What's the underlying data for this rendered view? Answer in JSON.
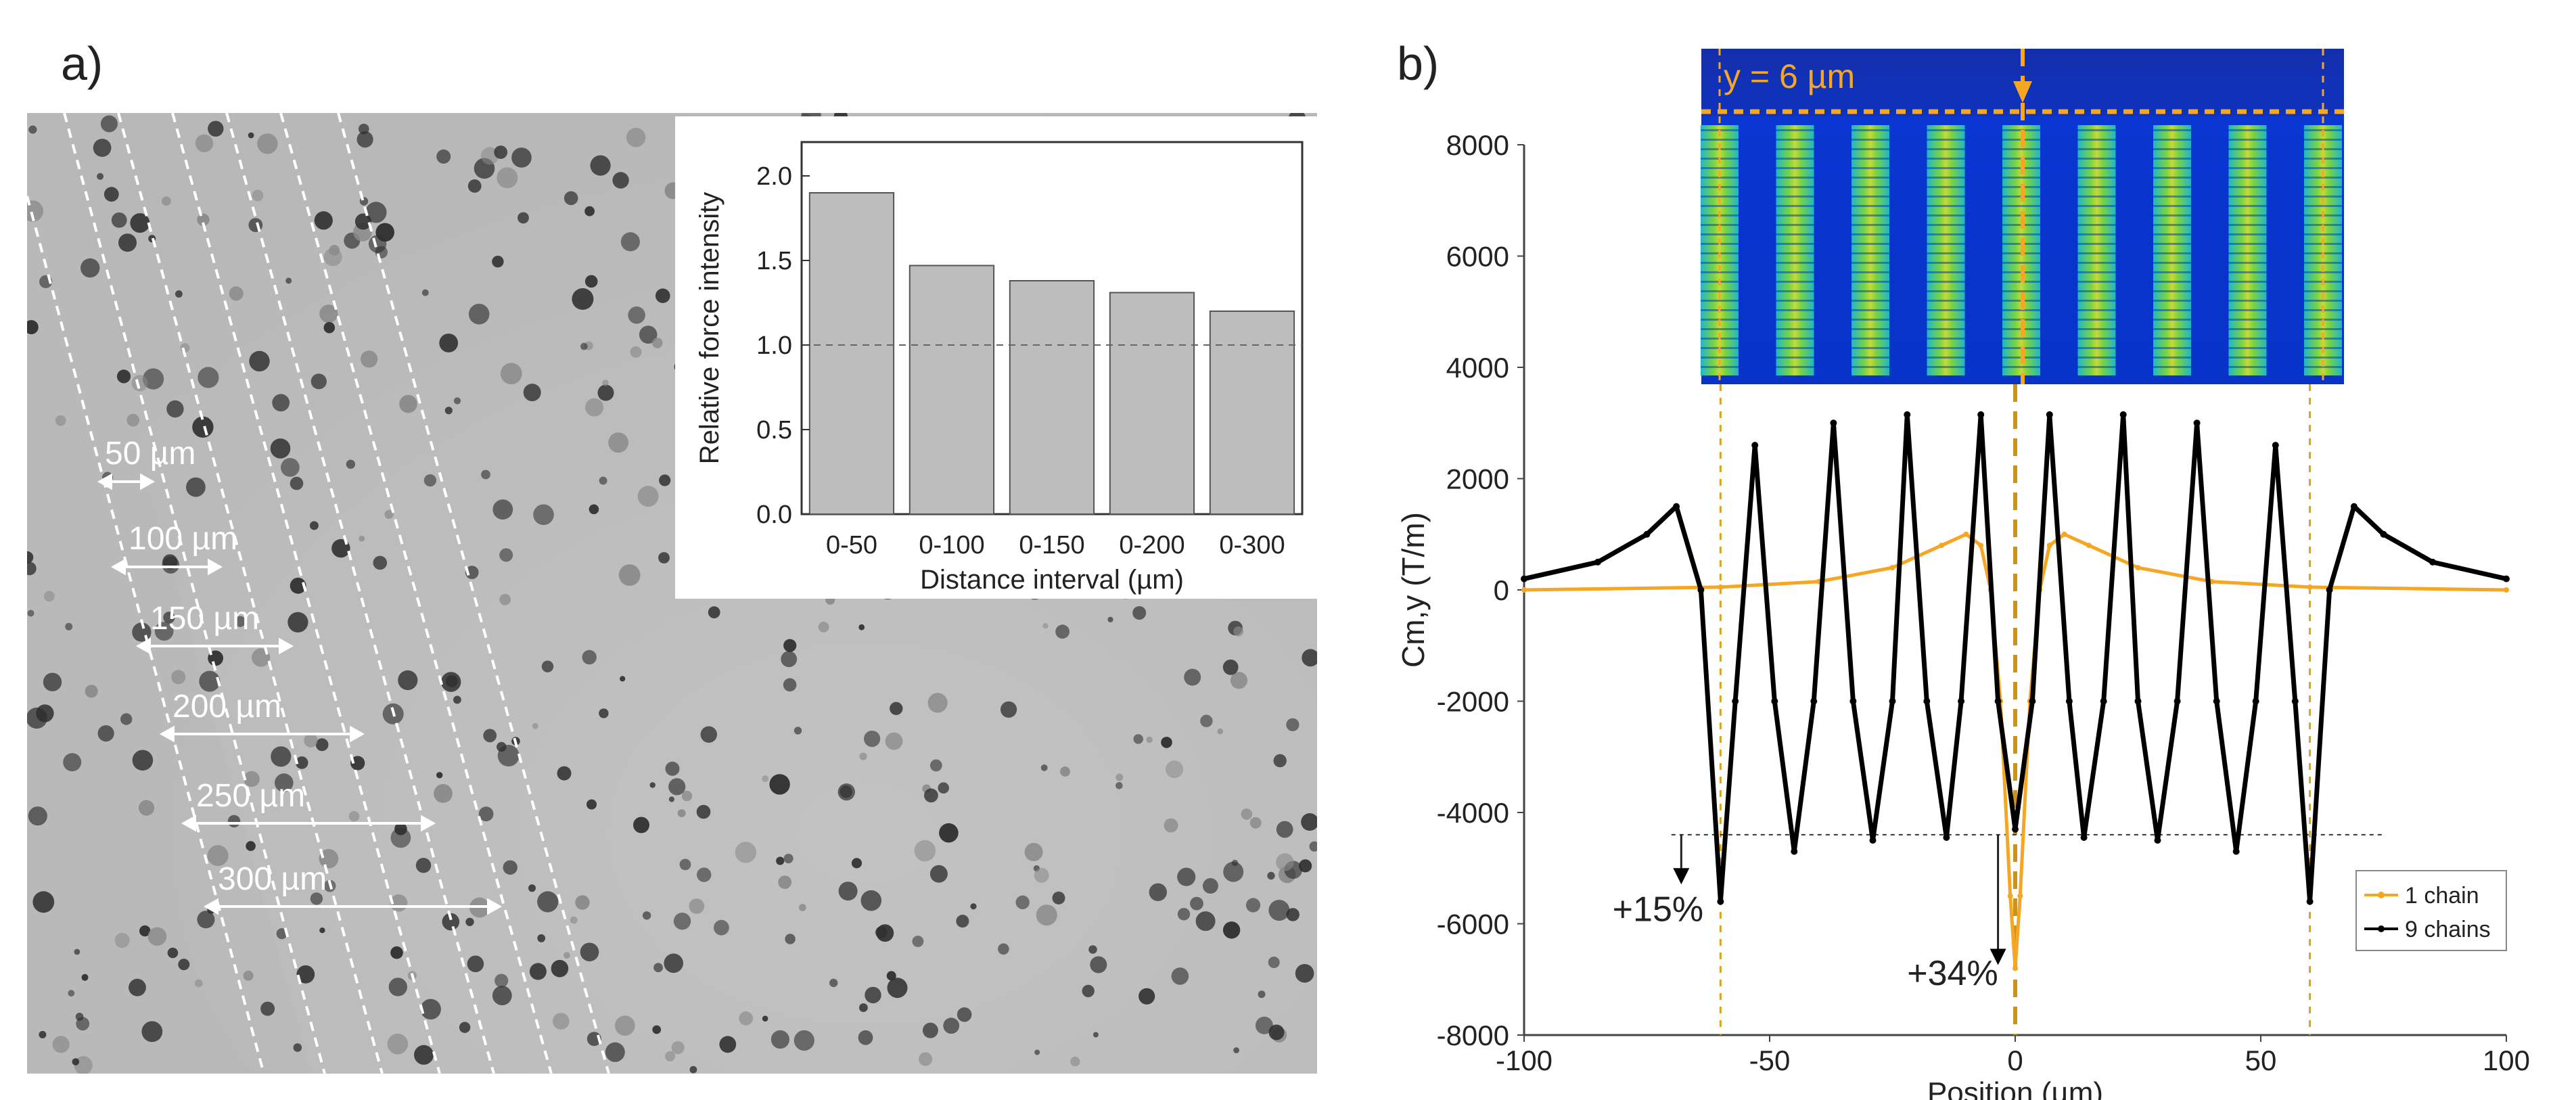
{
  "panels": {
    "a": {
      "label": "a)",
      "scale_labels": [
        "50 µm",
        "100 µm",
        "150 µm",
        "200 µm",
        "250 µm",
        "300 µm"
      ]
    },
    "b": {
      "label": "b)",
      "inset_label": "y = 6 µm",
      "annotations": [
        "+15%",
        "+34%"
      ]
    }
  },
  "chart_data": [
    {
      "type": "bar",
      "title": "",
      "categories": [
        "0-50",
        "0-100",
        "0-150",
        "0-200",
        "0-300"
      ],
      "values": [
        1.9,
        1.47,
        1.38,
        1.31,
        1.2
      ],
      "xlabel": "Distance interval (µm)",
      "ylabel": "Relative force intensity",
      "ylim": [
        0,
        2.2
      ],
      "yticks": [
        "0.0",
        "0.5",
        "1.0",
        "1.5",
        "2.0"
      ],
      "reference_line": 1.0
    },
    {
      "type": "line",
      "title": "",
      "xlabel": "Position (µm)",
      "ylabel": "Cm,y (T/m)",
      "xlim": [
        -100,
        100
      ],
      "ylim": [
        -8000,
        8000
      ],
      "xticks": [
        "-100",
        "-50",
        "0",
        "50",
        "100"
      ],
      "yticks": [
        "-8000",
        "-6000",
        "-4000",
        "-2000",
        "0",
        "2000",
        "4000",
        "6000",
        "8000"
      ],
      "legend_position": "bottom-right",
      "reference_line_y": -4400,
      "series": [
        {
          "name": "1 chain",
          "color": "#f5a623",
          "x": [
            -100,
            -60,
            -40,
            -25,
            -15,
            -10,
            -7,
            -5,
            -3,
            -1,
            0,
            1,
            3,
            5,
            7,
            10,
            15,
            25,
            40,
            60,
            100
          ],
          "y": [
            0,
            50,
            150,
            400,
            800,
            1000,
            800,
            0,
            -2000,
            -5500,
            -6800,
            -5500,
            -2000,
            0,
            800,
            1000,
            800,
            400,
            150,
            50,
            0
          ]
        },
        {
          "name": "9 chains",
          "color": "#000000",
          "x": [
            -100,
            -85,
            -75,
            -69,
            -64,
            -60,
            -57,
            -53,
            -49,
            -45,
            -41,
            -37,
            -33,
            -29,
            -25,
            -22,
            -18,
            -14,
            -11,
            -7,
            -3.5,
            0,
            3.5,
            7,
            11,
            14,
            18,
            22,
            25,
            29,
            33,
            37,
            41,
            45,
            49,
            53,
            57,
            60,
            64,
            69,
            75,
            85,
            100
          ],
          "y": [
            200,
            500,
            1000,
            1500,
            0,
            -5600,
            -2000,
            2600,
            -2000,
            -4700,
            -2000,
            3000,
            -2000,
            -4500,
            -2000,
            3150,
            -2000,
            -4450,
            -2000,
            3150,
            -2000,
            -4300,
            -2000,
            3150,
            -2000,
            -4450,
            -2000,
            3150,
            -2000,
            -4500,
            -2000,
            3000,
            -2000,
            -4700,
            -2000,
            2600,
            -2000,
            -5600,
            0,
            1500,
            1000,
            500,
            200
          ]
        }
      ]
    }
  ]
}
